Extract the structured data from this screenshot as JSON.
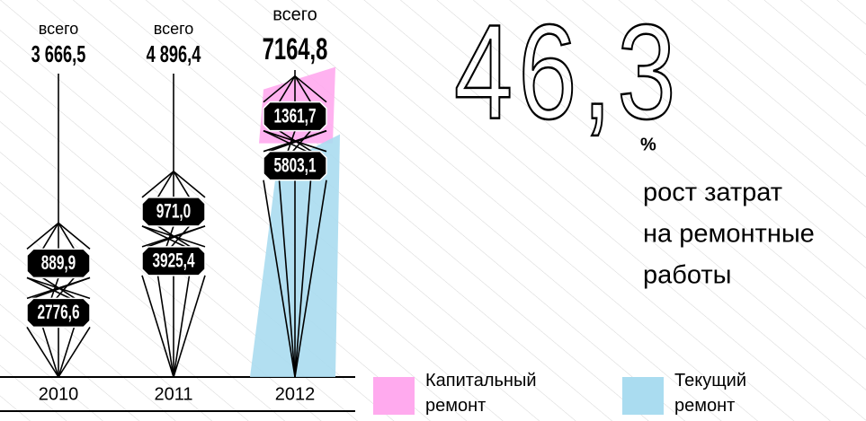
{
  "chart_data": {
    "type": "funnel-diamond",
    "categories": [
      "2010",
      "2011",
      "2012"
    ],
    "total_label": "всего",
    "totals": {
      "values": [
        3666.5,
        4896.4,
        7164.8
      ],
      "value_labels": [
        "3 666,5",
        "4 896,4",
        "7164,8"
      ]
    },
    "series": [
      {
        "name": "Капитальный ремонт",
        "color": "#ffaaee",
        "values": [
          889.9,
          971.0,
          1361.7
        ],
        "value_labels": [
          "889,9",
          "971,0",
          "1361,7"
        ]
      },
      {
        "name": "Текущий ремонт",
        "color": "#aadcf0",
        "values": [
          2776.6,
          3925.4,
          5803.1
        ],
        "value_labels": [
          "2776,6",
          "3925,4",
          "5803,1"
        ]
      }
    ],
    "growth": {
      "value": 46.3,
      "label": "46,3",
      "unit": "%",
      "text": [
        "рост затрат",
        "на ремонтные",
        "работы"
      ]
    }
  }
}
